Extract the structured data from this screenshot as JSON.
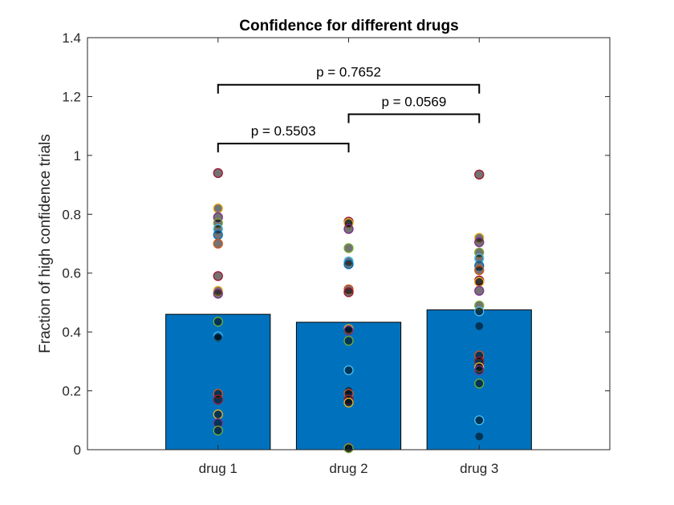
{
  "chart_data": {
    "type": "bar",
    "title": "Confidence for different drugs",
    "xlabel": "",
    "ylabel": "Fraction of high confidence trials",
    "ylim": [
      0,
      1.4
    ],
    "yticks": [
      "0",
      "0.2",
      "0.4",
      "0.6",
      "0.8",
      "1",
      "1.2",
      "1.4"
    ],
    "grid": false,
    "categories": [
      "drug 1",
      "drug 2",
      "drug 3"
    ],
    "values": [
      0.46,
      0.433,
      0.475
    ],
    "bar_color": "#0072BD",
    "points": [
      [
        0.94,
        0.82,
        0.79,
        0.77,
        0.75,
        0.73,
        0.7,
        0.59,
        0.54,
        0.53,
        0.435,
        0.385,
        0.38,
        0.19,
        0.17,
        0.12,
        0.09,
        0.065
      ],
      [
        0.775,
        0.77,
        0.75,
        0.685,
        0.64,
        0.63,
        0.545,
        0.535,
        0.41,
        0.405,
        0.37,
        0.27,
        0.2,
        0.19,
        0.17,
        0.16,
        0.007,
        0.005
      ],
      [
        0.935,
        0.72,
        0.705,
        0.67,
        0.65,
        0.625,
        0.61,
        0.575,
        0.57,
        0.54,
        0.49,
        0.47,
        0.42,
        0.32,
        0.3,
        0.28,
        0.27,
        0.225,
        0.1,
        0.045
      ]
    ],
    "point_colors": [
      "#A2142F",
      "#EDB120",
      "#7E2F8E",
      "#77AC30",
      "#4DBEEE",
      "#0072BD",
      "#D95319"
    ],
    "comparisons": [
      {
        "from": 0,
        "to": 1,
        "y": 1.04,
        "label": "p = 0.5503"
      },
      {
        "from": 1,
        "to": 2,
        "y": 1.14,
        "label": "p = 0.0569"
      },
      {
        "from": 0,
        "to": 2,
        "y": 1.24,
        "label": "p = 0.7652"
      }
    ]
  }
}
